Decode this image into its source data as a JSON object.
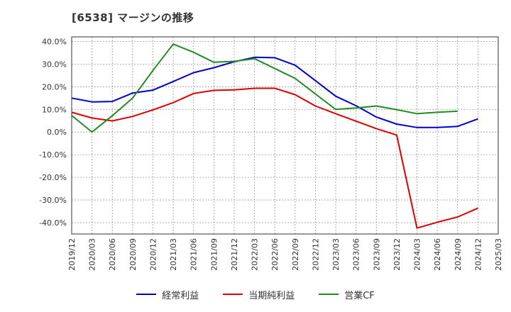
{
  "title": "[6538]  マージンの推移",
  "legend_items": [
    {
      "label": "経常利益",
      "color": "#0000cc"
    },
    {
      "label": "当期純利益",
      "color": "#dd0000"
    },
    {
      "label": "営業CF",
      "color": "#228b22"
    }
  ],
  "chart_data": {
    "type": "line",
    "title": "[6538]  マージンの推移",
    "xlabel": "",
    "ylabel": "",
    "ylim": [
      -45,
      42
    ],
    "yticks": [
      40,
      30,
      20,
      10,
      0,
      -10,
      -20,
      -30,
      -40
    ],
    "ytick_labels": [
      "40.0%",
      "30.0%",
      "20.0%",
      "10.0%",
      "0.0%",
      "-10.0%",
      "-20.0%",
      "-30.0%",
      "-40.0%"
    ],
    "grid": true,
    "legend_position": "bottom",
    "categories": [
      "2019/12",
      "2020/03",
      "2020/06",
      "2020/09",
      "2020/12",
      "2021/03",
      "2021/06",
      "2021/09",
      "2021/12",
      "2022/03",
      "2022/06",
      "2022/09",
      "2022/12",
      "2023/03",
      "2023/06",
      "2023/09",
      "2023/12",
      "2024/03",
      "2024/06",
      "2024/09",
      "2024/12",
      "2025/03"
    ],
    "series": [
      {
        "name": "経常利益",
        "color": "#0000cc",
        "values": [
          15.0,
          13.3,
          13.5,
          17.2,
          18.5,
          22.3,
          26.2,
          28.4,
          31.0,
          33.0,
          32.8,
          29.5,
          22.7,
          15.8,
          11.6,
          6.6,
          3.5,
          2.0,
          2.0,
          2.5,
          5.8,
          null
        ]
      },
      {
        "name": "当期純利益",
        "color": "#dd0000",
        "values": [
          8.7,
          6.2,
          4.9,
          6.9,
          9.8,
          13.0,
          17.0,
          18.4,
          18.6,
          19.3,
          19.3,
          16.5,
          11.5,
          8.1,
          4.8,
          1.5,
          -1.3,
          -42.4,
          -39.8,
          -37.5,
          -33.6,
          null
        ]
      },
      {
        "name": "営業CF",
        "color": "#228b22",
        "values": [
          7.3,
          0.0,
          7.2,
          15.0,
          27.2,
          38.8,
          35.2,
          30.8,
          31.2,
          32.4,
          28.0,
          23.7,
          16.8,
          10.0,
          10.6,
          11.5,
          9.9,
          8.1,
          8.7,
          9.2,
          null,
          null
        ]
      }
    ]
  }
}
